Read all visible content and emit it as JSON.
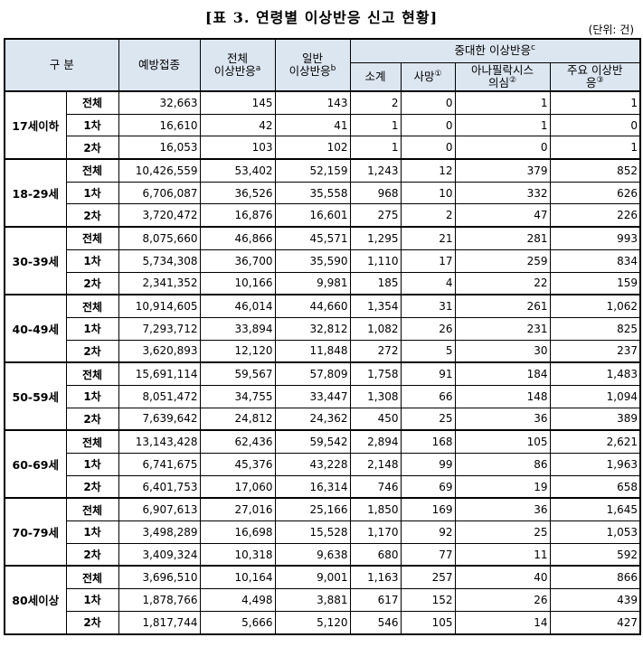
{
  "title": "[표 3. 연령별 이상반응 신고 현황]",
  "unit": "(단위: 건)",
  "headers": {
    "category": "구 분",
    "vaccinations": "예방접종",
    "total_ae_line1": "전체",
    "total_ae_line2": "이상반응",
    "total_ae_sup": "a",
    "general_ae_line1": "일반",
    "general_ae_line2": "이상반응",
    "general_ae_sup": "b",
    "serious_ae": "중대한 이상반응",
    "serious_ae_sup": "c",
    "subtotal": "소계",
    "death": "사망",
    "death_sup": "①",
    "anaphylaxis_line1": "아나필락시스",
    "anaphylaxis_line2": "의심",
    "anaphylaxis_sup": "②",
    "major_ae_line1": "주요 이상반",
    "major_ae_line2": "응",
    "major_ae_sup": "③"
  },
  "groups": [
    {
      "age": "17세이하",
      "rows": [
        {
          "dose": "전체",
          "values": [
            "32,663",
            "145",
            "143",
            "2",
            "0",
            "1",
            "1"
          ]
        },
        {
          "dose": "1차",
          "values": [
            "16,610",
            "42",
            "41",
            "1",
            "0",
            "1",
            "0"
          ]
        },
        {
          "dose": "2차",
          "values": [
            "16,053",
            "103",
            "102",
            "1",
            "0",
            "0",
            "1"
          ]
        }
      ]
    },
    {
      "age": "18-29세",
      "rows": [
        {
          "dose": "전체",
          "values": [
            "10,426,559",
            "53,402",
            "52,159",
            "1,243",
            "12",
            "379",
            "852"
          ]
        },
        {
          "dose": "1차",
          "values": [
            "6,706,087",
            "36,526",
            "35,558",
            "968",
            "10",
            "332",
            "626"
          ]
        },
        {
          "dose": "2차",
          "values": [
            "3,720,472",
            "16,876",
            "16,601",
            "275",
            "2",
            "47",
            "226"
          ]
        }
      ]
    },
    {
      "age": "30-39세",
      "rows": [
        {
          "dose": "전체",
          "values": [
            "8,075,660",
            "46,866",
            "45,571",
            "1,295",
            "21",
            "281",
            "993"
          ]
        },
        {
          "dose": "1차",
          "values": [
            "5,734,308",
            "36,700",
            "35,590",
            "1,110",
            "17",
            "259",
            "834"
          ]
        },
        {
          "dose": "2차",
          "values": [
            "2,341,352",
            "10,166",
            "9,981",
            "185",
            "4",
            "22",
            "159"
          ]
        }
      ]
    },
    {
      "age": "40-49세",
      "rows": [
        {
          "dose": "전체",
          "values": [
            "10,914,605",
            "46,014",
            "44,660",
            "1,354",
            "31",
            "261",
            "1,062"
          ]
        },
        {
          "dose": "1차",
          "values": [
            "7,293,712",
            "33,894",
            "32,812",
            "1,082",
            "26",
            "231",
            "825"
          ]
        },
        {
          "dose": "2차",
          "values": [
            "3,620,893",
            "12,120",
            "11,848",
            "272",
            "5",
            "30",
            "237"
          ]
        }
      ]
    },
    {
      "age": "50-59세",
      "rows": [
        {
          "dose": "전체",
          "values": [
            "15,691,114",
            "59,567",
            "57,809",
            "1,758",
            "91",
            "184",
            "1,483"
          ]
        },
        {
          "dose": "1차",
          "values": [
            "8,051,472",
            "34,755",
            "33,447",
            "1,308",
            "66",
            "148",
            "1,094"
          ]
        },
        {
          "dose": "2차",
          "values": [
            "7,639,642",
            "24,812",
            "24,362",
            "450",
            "25",
            "36",
            "389"
          ]
        }
      ]
    },
    {
      "age": "60-69세",
      "rows": [
        {
          "dose": "전체",
          "values": [
            "13,143,428",
            "62,436",
            "59,542",
            "2,894",
            "168",
            "105",
            "2,621"
          ]
        },
        {
          "dose": "1차",
          "values": [
            "6,741,675",
            "45,376",
            "43,228",
            "2,148",
            "99",
            "86",
            "1,963"
          ]
        },
        {
          "dose": "2차",
          "values": [
            "6,401,753",
            "17,060",
            "16,314",
            "746",
            "69",
            "19",
            "658"
          ]
        }
      ]
    },
    {
      "age": "70-79세",
      "rows": [
        {
          "dose": "전체",
          "values": [
            "6,907,613",
            "27,016",
            "25,166",
            "1,850",
            "169",
            "36",
            "1,645"
          ]
        },
        {
          "dose": "1차",
          "values": [
            "3,498,289",
            "16,698",
            "15,528",
            "1,170",
            "92",
            "25",
            "1,053"
          ]
        },
        {
          "dose": "2차",
          "values": [
            "3,409,324",
            "10,318",
            "9,638",
            "680",
            "77",
            "11",
            "592"
          ]
        }
      ]
    },
    {
      "age": "80세이상",
      "rows": [
        {
          "dose": "전체",
          "values": [
            "3,696,510",
            "10,164",
            "9,001",
            "1,163",
            "257",
            "40",
            "866"
          ]
        },
        {
          "dose": "1차",
          "values": [
            "1,878,766",
            "4,498",
            "3,881",
            "617",
            "152",
            "26",
            "439"
          ]
        },
        {
          "dose": "2차",
          "values": [
            "1,817,744",
            "5,666",
            "5,120",
            "546",
            "105",
            "14",
            "427"
          ]
        }
      ]
    }
  ]
}
